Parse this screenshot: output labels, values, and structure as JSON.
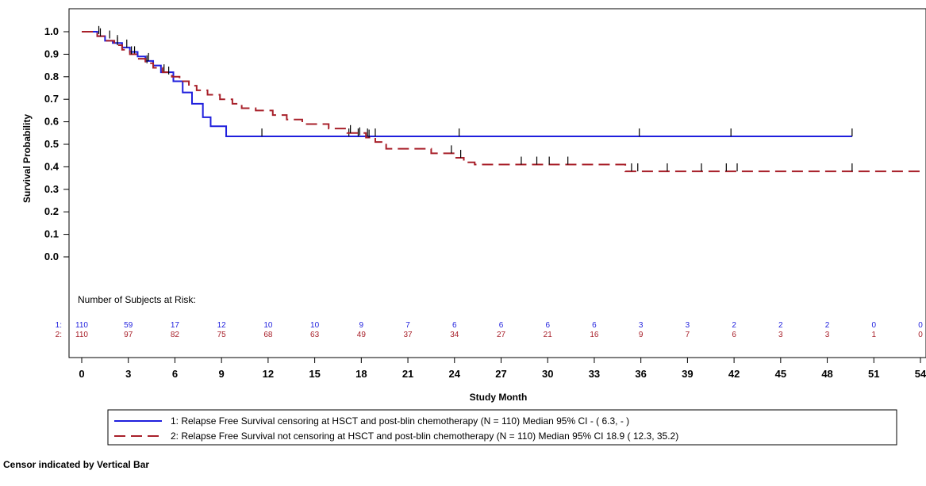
{
  "chart_data": {
    "type": "line",
    "chart_style": "kaplan-meier step",
    "xlabel": "Study Month",
    "ylabel": "Survival Probability",
    "xlim": [
      0,
      54
    ],
    "ylim": [
      0,
      1.0
    ],
    "x_ticks": [
      0,
      3,
      6,
      9,
      12,
      15,
      18,
      21,
      24,
      27,
      30,
      33,
      36,
      39,
      42,
      45,
      48,
      51,
      54
    ],
    "y_ticks": [
      "0.0",
      "0.1",
      "0.2",
      "0.3",
      "0.4",
      "0.5",
      "0.6",
      "0.7",
      "0.8",
      "0.9",
      "1.0"
    ],
    "grid": false,
    "series": [
      {
        "name": "1: Relapse Free Survival censoring at HSCT and post-blin chemotherapy (N = 110) Median 95% CI - ( 6.3, - )",
        "color": "#1f1fdd",
        "dash": "solid",
        "steps": [
          [
            0,
            1.0
          ],
          [
            1.0,
            0.98
          ],
          [
            1.5,
            0.96
          ],
          [
            2.0,
            0.95
          ],
          [
            2.6,
            0.93
          ],
          [
            3.1,
            0.91
          ],
          [
            3.6,
            0.89
          ],
          [
            4.1,
            0.87
          ],
          [
            4.6,
            0.85
          ],
          [
            5.1,
            0.82
          ],
          [
            5.9,
            0.78
          ],
          [
            6.5,
            0.73
          ],
          [
            7.1,
            0.68
          ],
          [
            7.8,
            0.62
          ],
          [
            8.3,
            0.58
          ],
          [
            9.3,
            0.535
          ],
          [
            49.6,
            0.535
          ]
        ],
        "censors": [
          [
            1.1,
            0.99
          ],
          [
            1.8,
            0.97
          ],
          [
            2.3,
            0.95
          ],
          [
            2.9,
            0.93
          ],
          [
            3.4,
            0.9
          ],
          [
            4.3,
            0.87
          ],
          [
            5.3,
            0.82
          ],
          [
            11.6,
            0.535
          ],
          [
            17.2,
            0.535
          ],
          [
            17.8,
            0.535
          ],
          [
            18.4,
            0.535
          ],
          [
            18.9,
            0.535
          ],
          [
            24.3,
            0.535
          ],
          [
            35.9,
            0.535
          ],
          [
            41.8,
            0.535
          ],
          [
            49.6,
            0.535
          ]
        ]
      },
      {
        "name": "2: Relapse Free Survival not censoring at HSCT and post-blin chemotherapy (N = 110) Median 95% CI 18.9 ( 12.3, 35.2)",
        "color": "#a8202a",
        "dash": "dashed",
        "steps": [
          [
            0,
            1.0
          ],
          [
            1.0,
            0.98
          ],
          [
            1.6,
            0.96
          ],
          [
            2.1,
            0.94
          ],
          [
            2.6,
            0.92
          ],
          [
            3.1,
            0.9
          ],
          [
            3.6,
            0.88
          ],
          [
            4.1,
            0.86
          ],
          [
            4.6,
            0.84
          ],
          [
            5.2,
            0.82
          ],
          [
            5.8,
            0.8
          ],
          [
            6.3,
            0.78
          ],
          [
            6.9,
            0.76
          ],
          [
            7.4,
            0.74
          ],
          [
            8.1,
            0.72
          ],
          [
            8.9,
            0.7
          ],
          [
            9.7,
            0.68
          ],
          [
            10.3,
            0.66
          ],
          [
            11.2,
            0.65
          ],
          [
            12.3,
            0.63
          ],
          [
            13.2,
            0.61
          ],
          [
            14.2,
            0.59
          ],
          [
            15.9,
            0.57
          ],
          [
            17.1,
            0.55
          ],
          [
            18.3,
            0.53
          ],
          [
            18.9,
            0.51
          ],
          [
            19.6,
            0.48
          ],
          [
            22.5,
            0.46
          ],
          [
            24.0,
            0.44
          ],
          [
            24.6,
            0.42
          ],
          [
            25.3,
            0.41
          ],
          [
            35.0,
            0.38
          ],
          [
            54.0,
            0.38
          ]
        ],
        "censors": [
          [
            1.2,
            0.98
          ],
          [
            2.3,
            0.94
          ],
          [
            3.2,
            0.9
          ],
          [
            4.2,
            0.86
          ],
          [
            5.6,
            0.81
          ],
          [
            17.3,
            0.55
          ],
          [
            17.9,
            0.54
          ],
          [
            18.5,
            0.53
          ],
          [
            23.8,
            0.46
          ],
          [
            24.4,
            0.44
          ],
          [
            28.3,
            0.41
          ],
          [
            29.3,
            0.41
          ],
          [
            30.1,
            0.41
          ],
          [
            31.3,
            0.41
          ],
          [
            35.4,
            0.38
          ],
          [
            35.8,
            0.38
          ],
          [
            37.7,
            0.38
          ],
          [
            39.9,
            0.38
          ],
          [
            41.5,
            0.38
          ],
          [
            42.2,
            0.38
          ],
          [
            49.6,
            0.38
          ]
        ]
      }
    ],
    "risk_table": {
      "title": "Number of Subjects at Risk:",
      "times": [
        0,
        3,
        6,
        9,
        12,
        15,
        18,
        21,
        24,
        27,
        30,
        33,
        36,
        39,
        42,
        45,
        48,
        51,
        54
      ],
      "rows": [
        {
          "label": "1:",
          "values": [
            "110",
            "59",
            "17",
            "12",
            "10",
            "10",
            "9",
            "7",
            "6",
            "6",
            "6",
            "6",
            "3",
            "3",
            "2",
            "2",
            "2",
            "0",
            "0"
          ]
        },
        {
          "label": "2:",
          "values": [
            "110",
            "97",
            "82",
            "75",
            "68",
            "63",
            "49",
            "37",
            "34",
            "27",
            "21",
            "16",
            "9",
            "7",
            "6",
            "3",
            "3",
            "1",
            "0"
          ]
        }
      ]
    },
    "legend_position": "bottom",
    "footnote": "Censor indicated by Vertical Bar"
  }
}
